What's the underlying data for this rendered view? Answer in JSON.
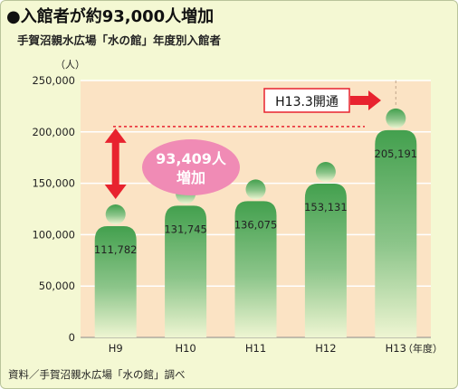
{
  "title": "●入館者が約93,000人増加",
  "subtitle": "手賀沼親水広場「水の館」年度別入館者",
  "source": "資料／手賀沼親水広場「水の館」調べ",
  "colors": {
    "panel": "#f4f8d3",
    "plot": "#fbe3c4",
    "grid": "#ffffff",
    "figure_top": "#43a04e",
    "figure_bottom": "#eef5d2",
    "arrow": "#e8232f",
    "bubble": "#f08bb5",
    "dotted_line": "#e8232f"
  },
  "chart_data": {
    "type": "bar",
    "bar_style": "person-shaped pictogram with gradient fill",
    "categories": [
      "H9",
      "H10",
      "H11",
      "H12",
      "H13"
    ],
    "values": [
      111782,
      131745,
      136075,
      153131,
      205191
    ],
    "value_labels": [
      "111,782",
      "131,745",
      "136,075",
      "153,131",
      "205,191"
    ],
    "ylim": [
      0,
      250000
    ],
    "yticks": [
      0,
      50000,
      100000,
      150000,
      200000,
      250000
    ],
    "ytick_labels": [
      "0",
      "50,000",
      "100,000",
      "150,000",
      "200,000",
      "250,000"
    ],
    "ylabel": "（人）",
    "xlabel": "（年度）",
    "grid": true,
    "annotations": {
      "increase_label_line1": "93,409人",
      "increase_label_line2": "増加",
      "increase_value": 93409,
      "opening_label": "H13.3開通",
      "reference_level": 205191
    }
  }
}
